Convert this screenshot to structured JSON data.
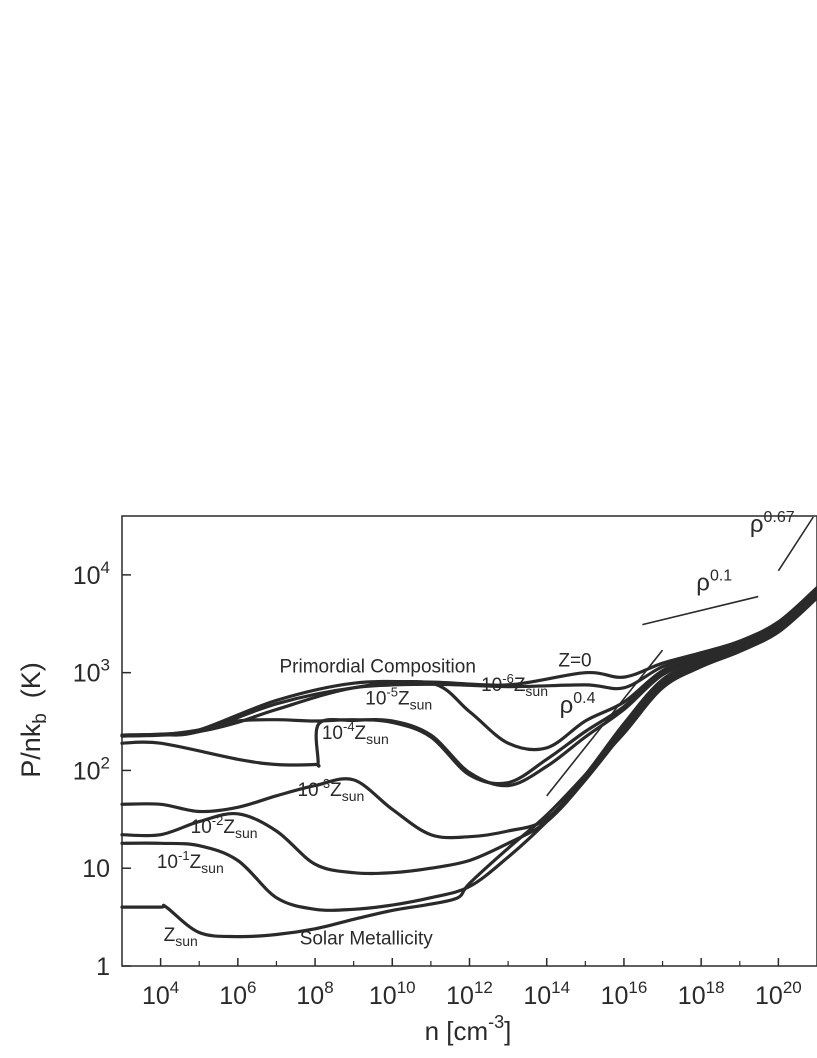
{
  "chart_data": {
    "type": "line",
    "title": "",
    "x_scale": "log",
    "y_scale": "log",
    "xlim": [
      1000,
      1e+21
    ],
    "ylim": [
      1,
      40000
    ],
    "xlabel": {
      "base": "n [cm",
      "sup": "-3",
      "tail": "]"
    },
    "ylabel": {
      "base": "P/nk",
      "sub": "b",
      "tail": "  (K)"
    },
    "x_ticks": [
      {
        "value": 10000.0,
        "base": "10",
        "exp": "4"
      },
      {
        "value": 1000000.0,
        "base": "10",
        "exp": "6"
      },
      {
        "value": 100000000.0,
        "base": "10",
        "exp": "8"
      },
      {
        "value": 10000000000.0,
        "base": "10",
        "exp": "10"
      },
      {
        "value": 1000000000000.0,
        "base": "10",
        "exp": "12"
      },
      {
        "value": 100000000000000.0,
        "base": "10",
        "exp": "14"
      },
      {
        "value": 1e+16,
        "base": "10",
        "exp": "16"
      },
      {
        "value": 1e+18,
        "base": "10",
        "exp": "18"
      },
      {
        "value": 1e+20,
        "base": "10",
        "exp": "20"
      }
    ],
    "y_ticks": [
      {
        "value": 1,
        "base": "1",
        "exp": ""
      },
      {
        "value": 10,
        "base": "10",
        "exp": ""
      },
      {
        "value": 100,
        "base": "10",
        "exp": "2"
      },
      {
        "value": 1000,
        "base": "10",
        "exp": "3"
      },
      {
        "value": 10000,
        "base": "10",
        "exp": "4"
      }
    ],
    "series": [
      {
        "x": [
          1000,
          10000.0,
          100000.0,
          10000000.0,
          1000000000.0,
          100000000000.0,
          10000000000000.0,
          1000000000000000.0,
          1e+16,
          1e+17,
          1e+18,
          1e+19,
          1e+20,
          1e+21
        ],
        "y": [
          230,
          235,
          260,
          520,
          780,
          800,
          750,
          1000,
          900,
          1250,
          1600,
          2100,
          3300,
          7400
        ]
      },
      {
        "x": [
          1000,
          10000.0,
          100000.0,
          10000000.0,
          1000000000.0,
          100000000000.0,
          10000000000000.0,
          1000000000000000.0,
          1e+16,
          1e+17,
          1e+18,
          1e+19,
          1e+20,
          1e+21
        ],
        "y": [
          225,
          230,
          250,
          480,
          700,
          760,
          720,
          750,
          700,
          1150,
          1500,
          2000,
          3200,
          7200
        ]
      },
      {
        "x": [
          1000,
          10000.0,
          100000.0,
          1000000.0,
          10000000.0,
          1000000000.0,
          100000000000.0,
          1000000000000.0,
          10000000000000.0,
          100000000000000.0,
          1000000000000000.0,
          1e+16,
          1e+17,
          1e+18,
          1e+19,
          1e+20,
          1e+21
        ],
        "y": [
          230,
          235,
          250,
          310,
          420,
          700,
          780,
          400,
          190,
          170,
          320,
          500,
          1050,
          1450,
          1950,
          3100,
          7000
        ]
      },
      {
        "x": [
          1000,
          10000.0,
          100000.0,
          1000000.0,
          10000000.0,
          100000000.0,
          1000000000.0,
          10000000000.0,
          100000000000.0,
          1000000000000.0,
          10000000000000.0,
          100000000000000.0,
          1000000000000000.0,
          1e+16,
          1e+17,
          1e+18,
          1e+19,
          1e+20,
          1e+21
        ],
        "y": [
          225,
          232,
          260,
          320,
          330,
          320,
          330,
          310,
          220,
          90,
          75,
          130,
          250,
          450,
          1000,
          1400,
          1900,
          3000,
          6800
        ]
      },
      {
        "x": [
          1000,
          10000.0,
          1000000.0,
          10000000.0,
          100000000.0,
          120000000.0,
          125000000.0,
          1000000000.0,
          10000000000.0,
          100000000000.0,
          1000000000000.0,
          10000000000000.0,
          100000000000000.0,
          1000000000000000.0,
          1e+16,
          1e+17,
          1e+18,
          1e+19,
          1e+20,
          1e+21
        ],
        "y": [
          190,
          190,
          130,
          115,
          115,
          120,
          300,
          325,
          320,
          230,
          95,
          70,
          110,
          220,
          420,
          950,
          1350,
          1850,
          2900,
          6600
        ]
      },
      {
        "x": [
          1000,
          10000.0,
          100000.0,
          1000000.0,
          10000000.0,
          100000000.0,
          1000000000.0,
          10000000000.0,
          100000000000.0,
          1000000000000.0,
          10000000000000.0,
          100000000000000.0,
          1000000000000000.0,
          1e+16,
          1e+17,
          1e+18,
          1e+19,
          1e+20,
          1e+21
        ],
        "y": [
          45,
          45,
          38,
          42,
          55,
          70,
          80,
          40,
          22,
          21,
          24,
          32,
          90,
          300,
          850,
          1300,
          1800,
          2800,
          6400
        ]
      },
      {
        "x": [
          1000,
          10000.0,
          100000.0,
          1000000.0,
          10000000.0,
          100000000.0,
          1000000000.0,
          10000000000.0,
          100000000000.0,
          1000000000000.0,
          10000000000000.0,
          100000000000000.0,
          1000000000000000.0,
          1e+16,
          1e+17,
          1e+18,
          1e+19,
          1e+20,
          1e+21
        ],
        "y": [
          22,
          22,
          30,
          36,
          24,
          11,
          9,
          9,
          10,
          12,
          18,
          30,
          80,
          270,
          800,
          1250,
          1750,
          2700,
          6200
        ]
      },
      {
        "x": [
          1000,
          10000.0,
          100000.0,
          1000000.0,
          10000000.0,
          100000000.0,
          1000000000.0,
          10000000000.0,
          100000000000.0,
          1000000000000.0,
          10000000000000.0,
          100000000000000.0,
          1000000000000000.0,
          1e+16,
          1e+17,
          1e+18,
          1e+19,
          1e+20,
          1e+21
        ],
        "y": [
          18,
          18,
          17,
          12,
          5,
          3.8,
          3.8,
          4.2,
          5,
          6.5,
          13,
          30,
          80,
          250,
          750,
          1200,
          1700,
          2650,
          6000
        ]
      },
      {
        "x": [
          1000,
          10000.0,
          14000.0,
          100000.0,
          1000000.0,
          10000000.0,
          100000000.0,
          1000000000.0,
          10000000000.0,
          100000000000.0,
          500000000000.0,
          1000000000000.0,
          10000000000000.0,
          100000000000000.0,
          1000000000000000.0,
          1e+16,
          1e+17,
          1e+18,
          1e+19,
          1e+20,
          1e+21
        ],
        "y": [
          4,
          4,
          4,
          2.2,
          2,
          2.1,
          2.4,
          3,
          3.7,
          4.3,
          5,
          7,
          16,
          35,
          90,
          240,
          700,
          1150,
          1650,
          2600,
          5800
        ]
      }
    ],
    "reference_slopes": [
      {
        "label_base": "ρ",
        "label_exp": "0.1",
        "x": [
          3e+16,
          3e+19
        ],
        "y": [
          3100,
          6000
        ]
      },
      {
        "label_base": "ρ",
        "label_exp": "0.4",
        "x": [
          100000000000000.0,
          1e+17
        ],
        "y": [
          55,
          1700
        ]
      },
      {
        "label_base": "ρ",
        "label_exp": "0.67",
        "x": [
          1e+20,
          8e+20
        ],
        "y": [
          11000,
          44000
        ]
      }
    ],
    "annotations": [
      {
        "id": "primordial-composition",
        "text": "Primordial Composition",
        "sub": "",
        "sup": "",
        "pre": "",
        "x": 12000000.0,
        "y": 1000
      },
      {
        "id": "z-zero",
        "text": "Z=0",
        "sub": "",
        "sup": "",
        "pre": "",
        "x": 200000000000000.0,
        "y": 1150
      },
      {
        "id": "z-1e-6",
        "pre": "10",
        "sup": "-6",
        "text": "Z",
        "sub": "sun",
        "x": 2000000000000.0,
        "y": 650
      },
      {
        "id": "z-1e-5",
        "pre": "10",
        "sup": "-5",
        "text": "Z",
        "sub": "sun",
        "x": 2000000000.0,
        "y": 470
      },
      {
        "id": "z-1e-4",
        "pre": "10",
        "sup": "-4",
        "text": "Z",
        "sub": "sun",
        "x": 150000000.0,
        "y": 210
      },
      {
        "id": "z-1e-3",
        "pre": "10",
        "sup": "-3",
        "text": "Z",
        "sub": "sun",
        "x": 35000000.0,
        "y": 55
      },
      {
        "id": "z-1e-2",
        "pre": "10",
        "sup": "-2",
        "text": "Z",
        "sub": "sun",
        "x": 60000.0,
        "y": 23
      },
      {
        "id": "z-1e-1",
        "pre": "10",
        "sup": "-1",
        "text": "Z",
        "sub": "sun",
        "x": 8000.0,
        "y": 10
      },
      {
        "id": "z-sun",
        "pre": "",
        "sup": "",
        "text": "Z",
        "sub": "sun",
        "x": 12000.0,
        "y": 1.8
      },
      {
        "id": "solar-metallicity",
        "text": "Solar Metallicity",
        "sub": "",
        "sup": "",
        "pre": "",
        "x": 40000000.0,
        "y": 1.65
      }
    ],
    "grid": false,
    "legend": "none",
    "line_color": "#2a2a2a"
  }
}
